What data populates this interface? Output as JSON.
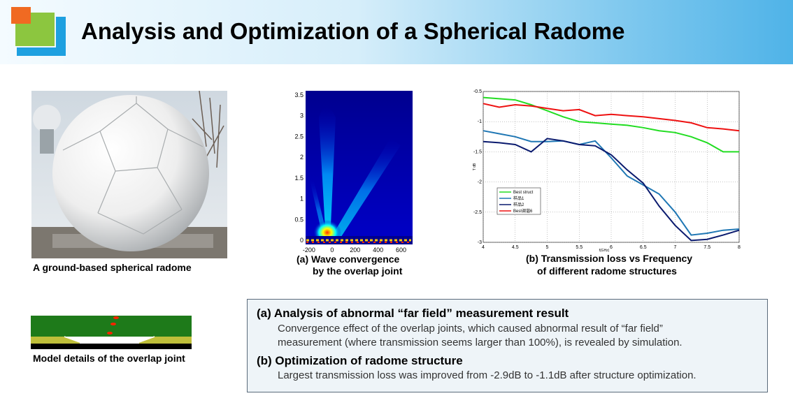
{
  "header": {
    "title": "Analysis and Optimization of a Spherical Radome",
    "logo_colors": {
      "orange": "#f06a22",
      "green": "#8cc63f",
      "blue": "#1ea0e0"
    }
  },
  "figures": {
    "photo_caption": "A ground-based spherical radome",
    "contour_caption_line1": "(a)  Wave convergence",
    "contour_caption_line2": "by the overlap joint",
    "chart_caption_line1": "(b) Transmission loss vs Frequency",
    "chart_caption_line2": "of different radome structures",
    "joint_caption": "Model details of the overlap joint"
  },
  "textbox": {
    "a_heading": "(a) Analysis of abnormal “far field” measurement result",
    "a_body_line1": "Convergence effect of the overlap joints, which caused abnormal result of  “far field”",
    "a_body_line2": "measurement (where transmission seems larger than 100%), is revealed by simulation.",
    "b_heading": "(b) Optimization of radome structure",
    "b_body": "Largest transmission loss was improved from -2.9dB to -1.1dB after structure optimization."
  },
  "chart_data": [
    {
      "type": "heatmap",
      "title": "",
      "xlabel": "",
      "ylabel": "",
      "x_ticks": [
        "-200",
        "0",
        "200",
        "400",
        "600"
      ],
      "y_ticks": [
        "0",
        "0.5",
        "1",
        "1.5",
        "2",
        "2.5",
        "3",
        "3.5"
      ],
      "xlim": [
        -230,
        700
      ],
      "ylim": [
        -0.1,
        3.6
      ],
      "colormap": "jet"
    },
    {
      "type": "line",
      "xlabel": "f(GHz)",
      "ylabel": "T dB",
      "xlim": [
        4,
        8
      ],
      "ylim": [
        -3,
        -0.5
      ],
      "x_ticks": [
        "4",
        "4.5",
        "5",
        "5.5",
        "6",
        "6.5",
        "7",
        "7.5",
        "8"
      ],
      "y_ticks": [
        "-0.5",
        "-1",
        "-1.5",
        "-2",
        "-2.5",
        "-3"
      ],
      "grid": true,
      "legend_position": "lower-left",
      "series": [
        {
          "name": "Best struct",
          "color": "#22dd22",
          "x": [
            4,
            4.25,
            4.5,
            4.75,
            5,
            5.25,
            5.5,
            5.75,
            6,
            6.25,
            6.5,
            6.75,
            7,
            7.25,
            7.5,
            7.75,
            8
          ],
          "values": [
            -0.6,
            -0.62,
            -0.64,
            -0.72,
            -0.82,
            -0.92,
            -1.0,
            -1.02,
            -1.04,
            -1.06,
            -1.1,
            -1.15,
            -1.18,
            -1.25,
            -1.35,
            -1.5,
            -1.5
          ]
        },
        {
          "name": "样品1",
          "color": "#1f77b4",
          "x": [
            4,
            4.25,
            4.5,
            4.75,
            5,
            5.25,
            5.5,
            5.75,
            6,
            6.25,
            6.5,
            6.75,
            7,
            7.25,
            7.5,
            7.75,
            8
          ],
          "values": [
            -1.15,
            -1.2,
            -1.25,
            -1.33,
            -1.33,
            -1.32,
            -1.38,
            -1.32,
            -1.6,
            -1.9,
            -2.05,
            -2.2,
            -2.5,
            -2.88,
            -2.85,
            -2.8,
            -2.78
          ]
        },
        {
          "name": "样品2",
          "color": "#0a1a6e",
          "x": [
            4,
            4.25,
            4.5,
            4.75,
            5,
            5.25,
            5.5,
            5.75,
            6,
            6.25,
            6.5,
            6.75,
            7,
            7.25,
            7.5,
            7.75,
            8
          ],
          "values": [
            -1.33,
            -1.35,
            -1.38,
            -1.5,
            -1.28,
            -1.32,
            -1.38,
            -1.4,
            -1.55,
            -1.8,
            -2.02,
            -2.4,
            -2.72,
            -2.97,
            -2.95,
            -2.88,
            -2.8
          ]
        },
        {
          "name": "Best调谐6",
          "color": "#ee1111",
          "x": [
            4,
            4.25,
            4.5,
            4.75,
            5,
            5.25,
            5.5,
            5.75,
            6,
            6.25,
            6.5,
            6.75,
            7,
            7.25,
            7.5,
            7.75,
            8
          ],
          "values": [
            -0.7,
            -0.76,
            -0.72,
            -0.74,
            -0.78,
            -0.82,
            -0.8,
            -0.9,
            -0.88,
            -0.9,
            -0.92,
            -0.95,
            -0.98,
            -1.02,
            -1.1,
            -1.12,
            -1.15
          ]
        }
      ]
    }
  ]
}
